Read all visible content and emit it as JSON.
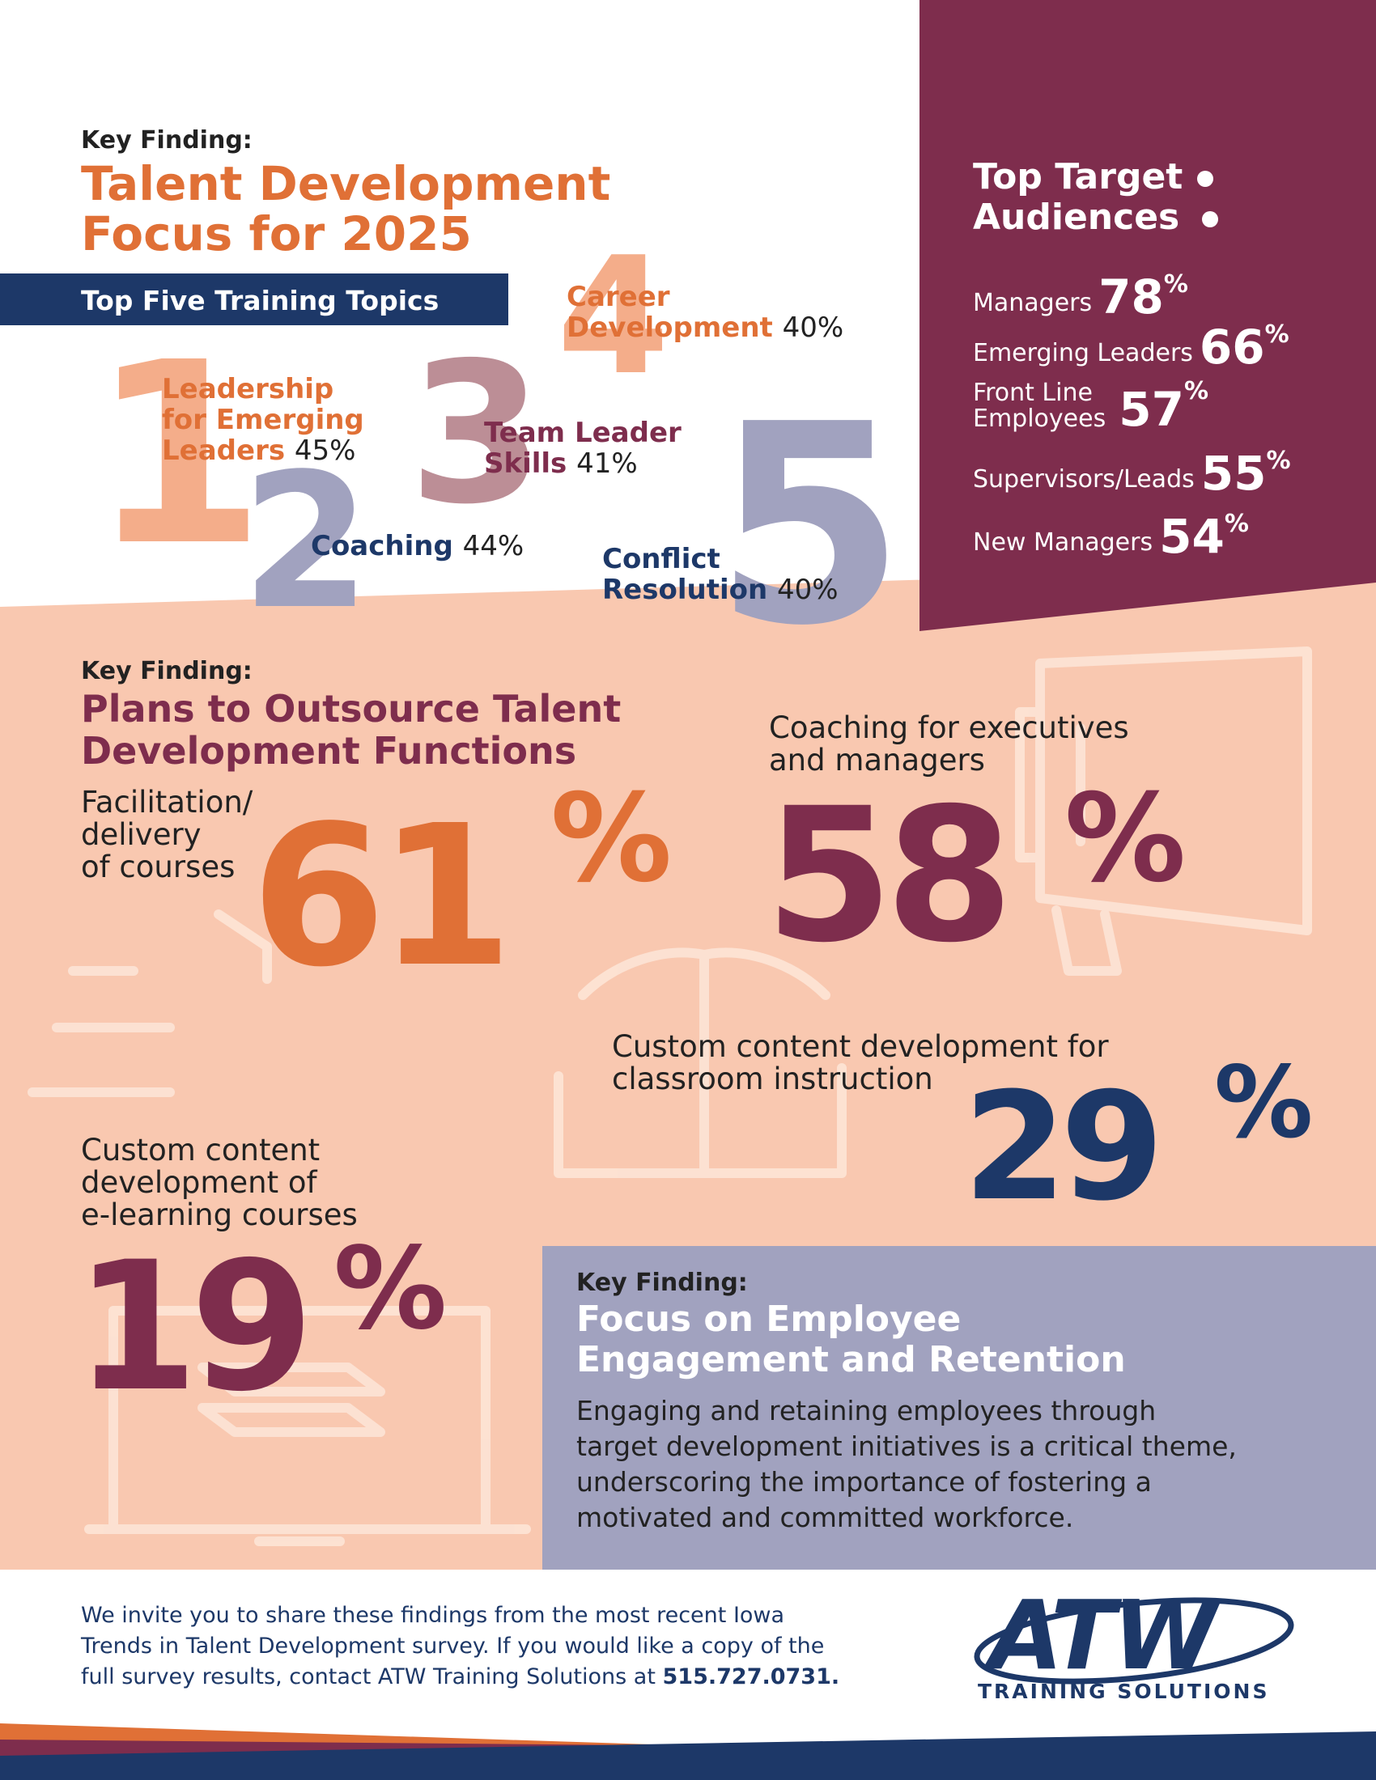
{
  "section1": {
    "key_finding": "Key Finding:",
    "title_line1": "Talent Development",
    "title_line2": "Focus for 2025",
    "banner": "Top Five Training Topics",
    "topics": [
      {
        "rank": "1",
        "label_lines": [
          "Leadership",
          "for Emerging",
          "Leaders"
        ],
        "percent": "45%"
      },
      {
        "rank": "2",
        "label_lines": [
          "Coaching"
        ],
        "percent": "44%"
      },
      {
        "rank": "3",
        "label_lines": [
          "Team Leader",
          "Skills"
        ],
        "percent": "41%"
      },
      {
        "rank": "4",
        "label_lines": [
          "Career",
          "Development"
        ],
        "percent": "40%"
      },
      {
        "rank": "5",
        "label_lines": [
          "Conflict",
          "Resolution"
        ],
        "percent": "40%"
      }
    ]
  },
  "audiences": {
    "title_line1": "Top Target",
    "title_line2": "Audiences",
    "items": [
      {
        "label_lines": [
          "Managers"
        ],
        "value": "78",
        "symbol": "%"
      },
      {
        "label_lines": [
          "Emerging Leaders"
        ],
        "value": "66",
        "symbol": "%"
      },
      {
        "label_lines": [
          "Front Line",
          "Employees"
        ],
        "value": "57",
        "symbol": "%"
      },
      {
        "label_lines": [
          "Supervisors/Leads"
        ],
        "value": "55",
        "symbol": "%"
      },
      {
        "label_lines": [
          "New Managers"
        ],
        "value": "54",
        "symbol": "%"
      }
    ]
  },
  "section2": {
    "key_finding": "Key Finding:",
    "title_line1": "Plans to Outsource Talent",
    "title_line2": "Development Functions",
    "stats": [
      {
        "label_lines": [
          "Facilitation/",
          "delivery",
          "of courses"
        ],
        "value": "61",
        "symbol": "%"
      },
      {
        "label_lines": [
          "Coaching for executives",
          "and managers"
        ],
        "value": "58",
        "symbol": "%"
      },
      {
        "label_lines": [
          "Custom content development for",
          "classroom instruction"
        ],
        "value": "29",
        "symbol": "%"
      },
      {
        "label_lines": [
          "Custom content",
          "development of",
          "e-learning courses"
        ],
        "value": "19",
        "symbol": "%"
      }
    ]
  },
  "section3": {
    "key_finding": "Key Finding:",
    "title_line1": "Focus on Employee",
    "title_line2": "Engagement and Retention",
    "body_lines": [
      "Engaging and retaining employees through",
      "target development initiatives is a critical theme,",
      "underscoring the importance of fostering a",
      "motivated and committed workforce."
    ]
  },
  "footer": {
    "lines": [
      "We invite you to share these findings from the most recent Iowa",
      "Trends in Talent Development survey. If you would like a copy of the",
      "full survey results, contact ATW Training Solutions at "
    ],
    "phone": "515.727.0731.",
    "logo_text": "ATW",
    "logo_subtext": "TRAINING SOLUTIONS"
  },
  "colors": {
    "orange": "#e07036",
    "light_orange": "#f4ad8a",
    "peach": "#f9c8b0",
    "maroon": "#7e2d4d",
    "navy": "#1d3868",
    "lavender": "#a1a2bf",
    "mauve": "#bc8e96"
  }
}
